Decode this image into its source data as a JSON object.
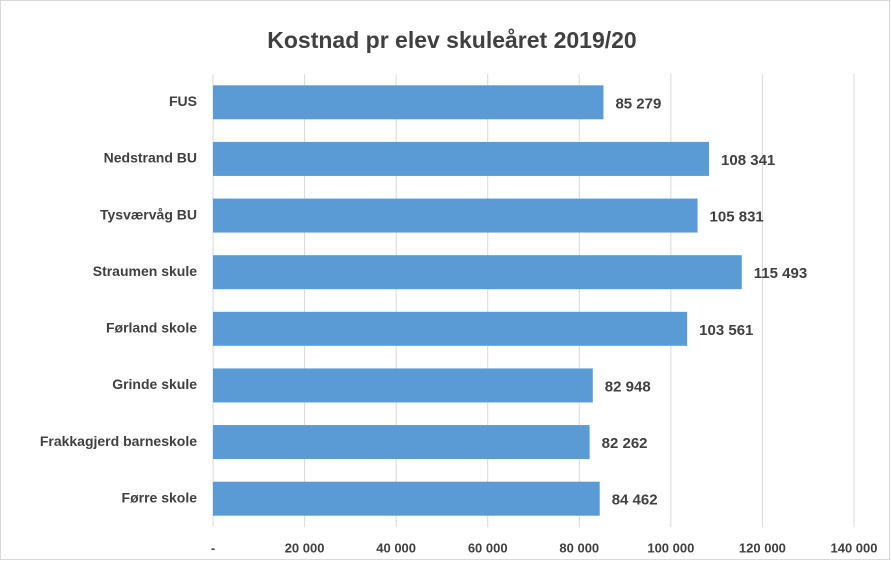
{
  "chart_data": {
    "type": "barh",
    "title": "Kostnad pr elev skuleåret 2019/20",
    "categories": [
      "FUS",
      "Nedstrand BU",
      "Tysværvåg BU",
      "Straumen skule",
      "Førland skole",
      "Grinde skule",
      "Frakkagjerd barneskole",
      "Førre skole"
    ],
    "values": [
      85279,
      108341,
      105831,
      115493,
      103561,
      82948,
      82262,
      84462
    ],
    "value_labels": [
      "85 279",
      "108 341",
      "105 831",
      "115 493",
      "103 561",
      "82 948",
      "82 262",
      "84 462"
    ],
    "color": "#5b9bd5",
    "xlim": [
      0,
      140000
    ],
    "xticks": [
      {
        "value": 0,
        "label": "-"
      },
      {
        "value": 20000,
        "label": "20 000"
      },
      {
        "value": 40000,
        "label": "40 000"
      },
      {
        "value": 60000,
        "label": "60 000"
      },
      {
        "value": 80000,
        "label": "80 000"
      },
      {
        "value": 100000,
        "label": "100 000"
      },
      {
        "value": 120000,
        "label": "120 000"
      },
      {
        "value": 140000,
        "label": "140 000"
      }
    ],
    "grid": true
  }
}
